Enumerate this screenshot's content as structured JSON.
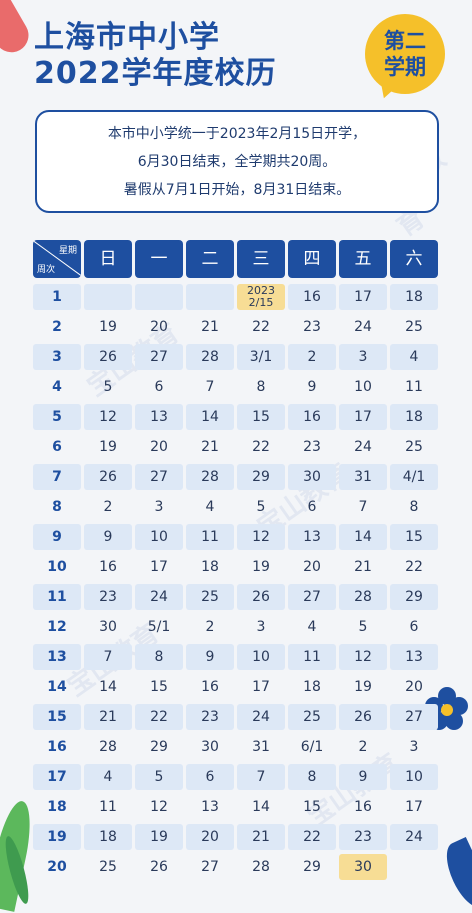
{
  "title_line1": "上海市中小学",
  "title_line2": "2022学年度校历",
  "badge": {
    "line1": "第二",
    "line2": "学期"
  },
  "notice": {
    "line1": "本市中小学统一于2023年2月15日开学，",
    "line2": "6月30日结束，全学期共20周。",
    "line3": "暑假从7月1日开始，8月31日结束。"
  },
  "watermark": "宝山教育",
  "header": {
    "week_label": "星期",
    "weekno_label": "周次",
    "days": [
      "日",
      "一",
      "二",
      "三",
      "四",
      "五",
      "六"
    ]
  },
  "colors": {
    "primary": "#1e4fa0",
    "shade": "#dde8f6",
    "highlight": "#f7dd95",
    "badge": "#f5c02a"
  },
  "weeks": [
    {
      "no": "1",
      "days": [
        "",
        "",
        "",
        "2023\n2/15",
        "16",
        "17",
        "18"
      ]
    },
    {
      "no": "2",
      "days": [
        "19",
        "20",
        "21",
        "22",
        "23",
        "24",
        "25"
      ]
    },
    {
      "no": "3",
      "days": [
        "26",
        "27",
        "28",
        "3/1",
        "2",
        "3",
        "4"
      ]
    },
    {
      "no": "4",
      "days": [
        "5",
        "6",
        "7",
        "8",
        "9",
        "10",
        "11"
      ]
    },
    {
      "no": "5",
      "days": [
        "12",
        "13",
        "14",
        "15",
        "16",
        "17",
        "18"
      ]
    },
    {
      "no": "6",
      "days": [
        "19",
        "20",
        "21",
        "22",
        "23",
        "24",
        "25"
      ]
    },
    {
      "no": "7",
      "days": [
        "26",
        "27",
        "28",
        "29",
        "30",
        "31",
        "4/1"
      ]
    },
    {
      "no": "8",
      "days": [
        "2",
        "3",
        "4",
        "5",
        "6",
        "7",
        "8"
      ]
    },
    {
      "no": "9",
      "days": [
        "9",
        "10",
        "11",
        "12",
        "13",
        "14",
        "15"
      ]
    },
    {
      "no": "10",
      "days": [
        "16",
        "17",
        "18",
        "19",
        "20",
        "21",
        "22"
      ]
    },
    {
      "no": "11",
      "days": [
        "23",
        "24",
        "25",
        "26",
        "27",
        "28",
        "29"
      ]
    },
    {
      "no": "12",
      "days": [
        "30",
        "5/1",
        "2",
        "3",
        "4",
        "5",
        "6"
      ]
    },
    {
      "no": "13",
      "days": [
        "7",
        "8",
        "9",
        "10",
        "11",
        "12",
        "13"
      ]
    },
    {
      "no": "14",
      "days": [
        "14",
        "15",
        "16",
        "17",
        "18",
        "19",
        "20"
      ]
    },
    {
      "no": "15",
      "days": [
        "21",
        "22",
        "23",
        "24",
        "25",
        "26",
        "27"
      ]
    },
    {
      "no": "16",
      "days": [
        "28",
        "29",
        "30",
        "31",
        "6/1",
        "2",
        "3"
      ]
    },
    {
      "no": "17",
      "days": [
        "4",
        "5",
        "6",
        "7",
        "8",
        "9",
        "10"
      ]
    },
    {
      "no": "18",
      "days": [
        "11",
        "12",
        "13",
        "14",
        "15",
        "16",
        "17"
      ]
    },
    {
      "no": "19",
      "days": [
        "18",
        "19",
        "20",
        "21",
        "22",
        "23",
        "24"
      ]
    },
    {
      "no": "20",
      "days": [
        "25",
        "26",
        "27",
        "28",
        "29",
        "30",
        ""
      ]
    }
  ],
  "highlights": [
    {
      "week": 1,
      "day": 3
    },
    {
      "week": 20,
      "day": 5
    }
  ]
}
